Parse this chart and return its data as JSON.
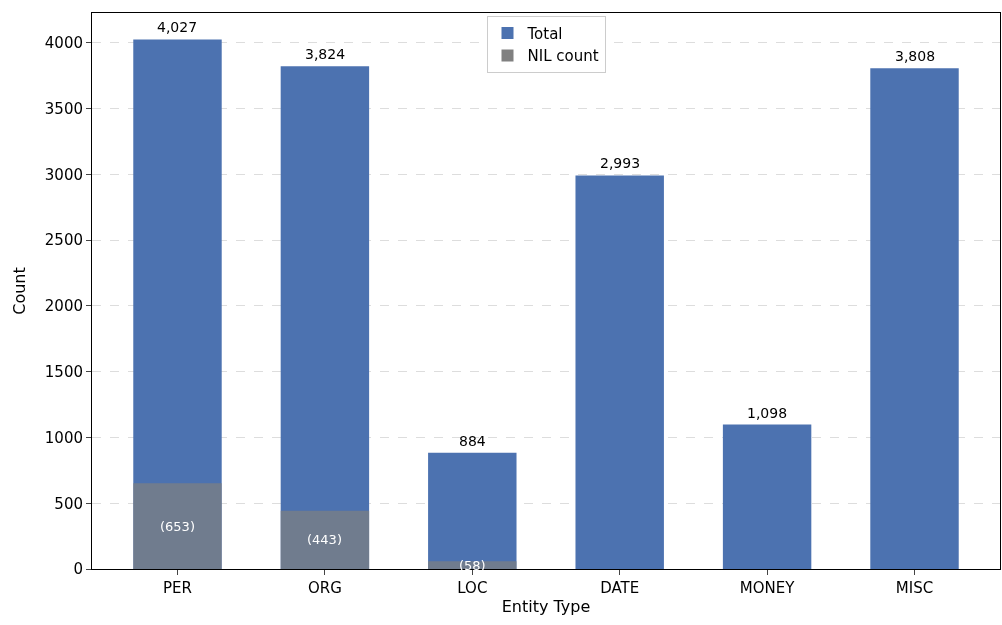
{
  "chart_data": {
    "type": "bar",
    "xlabel": "Entity Type",
    "ylabel": "Count",
    "categories": [
      "PER",
      "ORG",
      "LOC",
      "DATE",
      "MONEY",
      "MISC"
    ],
    "series": [
      {
        "name": "Total",
        "color": "#4c72b0",
        "values": [
          4027,
          3824,
          884,
          2993,
          1098,
          3808
        ],
        "value_labels": [
          "4,027",
          "3,824",
          "884",
          "2,993",
          "1,098",
          "3,808"
        ]
      },
      {
        "name": "NIL count",
        "color": "#808080",
        "values": [
          653,
          443,
          58,
          null,
          null,
          null
        ],
        "value_labels": [
          "(653)",
          "(443)",
          "(58)",
          null,
          null,
          null
        ]
      }
    ],
    "ylim": [
      0,
      4228
    ],
    "yticks": [
      0,
      500,
      1000,
      1500,
      2000,
      2500,
      3000,
      3500,
      4000
    ],
    "grid": "y",
    "legend": "top"
  }
}
